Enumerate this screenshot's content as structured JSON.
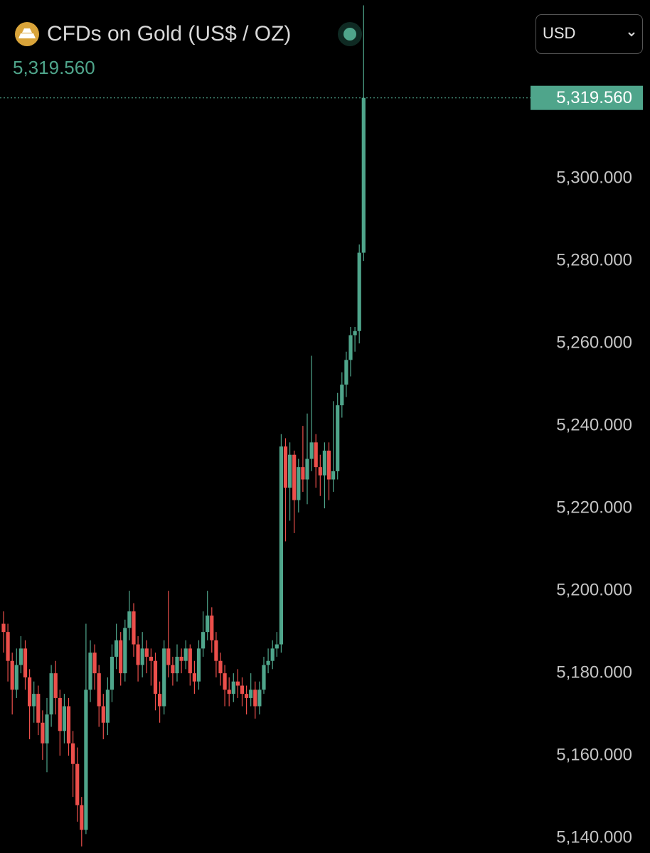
{
  "chart_data": {
    "type": "candlestick",
    "title": "CFDs on Gold (US$ / OZ)",
    "currency": "USD",
    "last_price": {
      "value": 5319.56,
      "label": "5,319.560"
    },
    "up_color": "#4fa58b",
    "down_color": "#ec4f4b",
    "ylim": [
      5136.4,
      5343.3
    ],
    "yticks": [
      {
        "value": 5140,
        "label": "5,140.000"
      },
      {
        "value": 5160,
        "label": "5,160.000"
      },
      {
        "value": 5180,
        "label": "5,180.000"
      },
      {
        "value": 5200,
        "label": "5,200.000"
      },
      {
        "value": 5220,
        "label": "5,220.000"
      },
      {
        "value": 5240,
        "label": "5,240.000"
      },
      {
        "value": 5260,
        "label": "5,260.000"
      },
      {
        "value": 5280,
        "label": "5,280.000"
      },
      {
        "value": 5300,
        "label": "5,300.000"
      }
    ],
    "open": [
      5192,
      5190,
      5183,
      5176,
      5182,
      5186,
      5179,
      5172,
      5175,
      5168,
      5163,
      5170,
      5180,
      5174,
      5166,
      5172,
      5163,
      5158,
      5148,
      5142,
      5176,
      5185,
      5180,
      5172,
      5168,
      5176,
      5184,
      5188,
      5180,
      5191,
      5195,
      5187,
      5182,
      5186,
      5184,
      5183,
      5175,
      5172,
      5186,
      5182,
      5180,
      5184,
      5183,
      5186,
      5180,
      5178,
      5186,
      5190,
      5194,
      5188,
      5183,
      5180,
      5176,
      5175,
      5178,
      5177,
      5175,
      5174,
      5176,
      5172,
      5176,
      5182,
      5183,
      5186,
      5187,
      5235,
      5225,
      5233,
      5222,
      5230,
      5227,
      5232,
      5236,
      5230,
      5228,
      5234,
      5227,
      5229,
      5245,
      5250,
      5256,
      5262,
      5263,
      5282
    ],
    "high": [
      5195,
      5192,
      5185,
      5186,
      5189,
      5188,
      5181,
      5178,
      5177,
      5171,
      5174,
      5182,
      5183,
      5176,
      5175,
      5174,
      5166,
      5162,
      5150,
      5192,
      5188,
      5187,
      5182,
      5175,
      5179,
      5187,
      5192,
      5190,
      5193,
      5200,
      5197,
      5189,
      5190,
      5188,
      5186,
      5185,
      5178,
      5188,
      5200,
      5184,
      5187,
      5186,
      5188,
      5187,
      5183,
      5188,
      5195,
      5200,
      5196,
      5190,
      5185,
      5182,
      5179,
      5180,
      5181,
      5179,
      5177,
      5180,
      5178,
      5178,
      5184,
      5186,
      5188,
      5190,
      5238,
      5237,
      5236,
      5234,
      5232,
      5240,
      5243,
      5257,
      5238,
      5233,
      5236,
      5236,
      5246,
      5248,
      5253,
      5258,
      5264,
      5264,
      5284,
      5342
    ],
    "low": [
      5185,
      5178,
      5170,
      5174,
      5180,
      5176,
      5164,
      5168,
      5165,
      5159,
      5156,
      5167,
      5170,
      5160,
      5163,
      5160,
      5150,
      5144,
      5138,
      5141,
      5173,
      5176,
      5167,
      5164,
      5165,
      5173,
      5181,
      5177,
      5178,
      5188,
      5184,
      5178,
      5179,
      5180,
      5177,
      5171,
      5168,
      5170,
      5179,
      5177,
      5178,
      5180,
      5181,
      5177,
      5175,
      5176,
      5184,
      5188,
      5185,
      5179,
      5177,
      5172,
      5172,
      5173,
      5174,
      5172,
      5170,
      5172,
      5169,
      5170,
      5175,
      5180,
      5181,
      5184,
      5185,
      5212,
      5217,
      5214,
      5219,
      5224,
      5221,
      5229,
      5225,
      5223,
      5220,
      5222,
      5224,
      5227,
      5242,
      5247,
      5252,
      5258,
      5260,
      5280
    ],
    "close": [
      5190,
      5183,
      5176,
      5182,
      5186,
      5179,
      5172,
      5175,
      5168,
      5163,
      5170,
      5180,
      5174,
      5166,
      5172,
      5163,
      5158,
      5148,
      5142,
      5176,
      5185,
      5180,
      5172,
      5168,
      5176,
      5184,
      5188,
      5180,
      5191,
      5195,
      5187,
      5182,
      5186,
      5184,
      5183,
      5175,
      5172,
      5186,
      5182,
      5180,
      5184,
      5183,
      5186,
      5180,
      5178,
      5186,
      5190,
      5194,
      5188,
      5183,
      5180,
      5176,
      5175,
      5178,
      5177,
      5175,
      5174,
      5176,
      5172,
      5176,
      5182,
      5183,
      5186,
      5187,
      5235,
      5225,
      5233,
      5222,
      5230,
      5227,
      5232,
      5236,
      5230,
      5228,
      5234,
      5227,
      5229,
      5245,
      5250,
      5256,
      5262,
      5263,
      5282,
      5319.56
    ]
  }
}
